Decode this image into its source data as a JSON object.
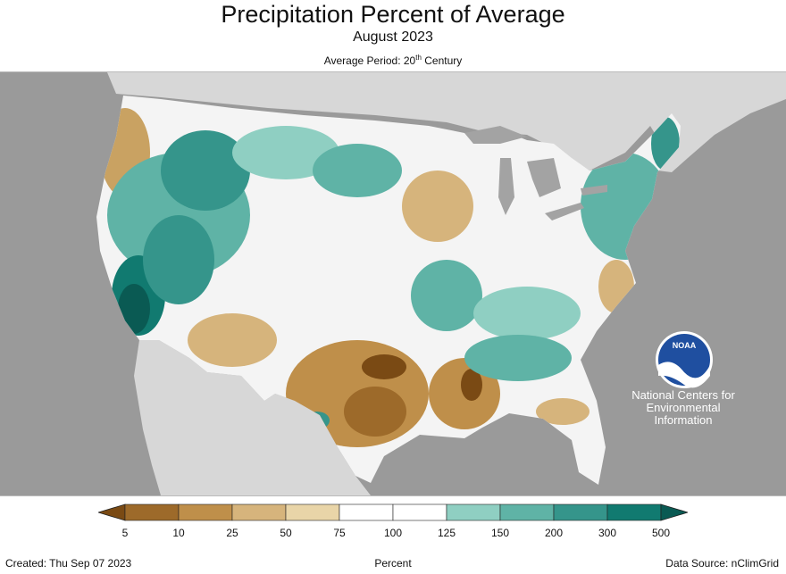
{
  "header": {
    "title": "Precipitation Percent of Average",
    "subtitle": "August 2023",
    "period_prefix": "Average Period: 20",
    "period_sup": "th",
    "period_suffix": " Century"
  },
  "logo": {
    "text": "NOAA",
    "agency_lines": [
      "National Centers for",
      "Environmental",
      "Information"
    ]
  },
  "legend": {
    "ticks": [
      "5",
      "10",
      "25",
      "50",
      "75",
      "100",
      "125",
      "150",
      "200",
      "300",
      "500"
    ],
    "colors": [
      "#7a4a14",
      "#9d6a2a",
      "#bf8f4a",
      "#d6b47c",
      "#e9d5a8",
      "#ffffff",
      "#ffffff",
      "#8fcfc2",
      "#5fb3a6",
      "#35958b",
      "#117a70",
      "#0a5a53"
    ],
    "unit_label": "Percent"
  },
  "footer": {
    "created": "Created: Thu Sep 07 2023",
    "source": "Data Source: nClimGrid"
  },
  "map_colors": {
    "ocean": "#9a9a9a",
    "land_outside": "#d7d7d7",
    "lakes": "#a3a3a3",
    "borders": "#ffffff"
  }
}
